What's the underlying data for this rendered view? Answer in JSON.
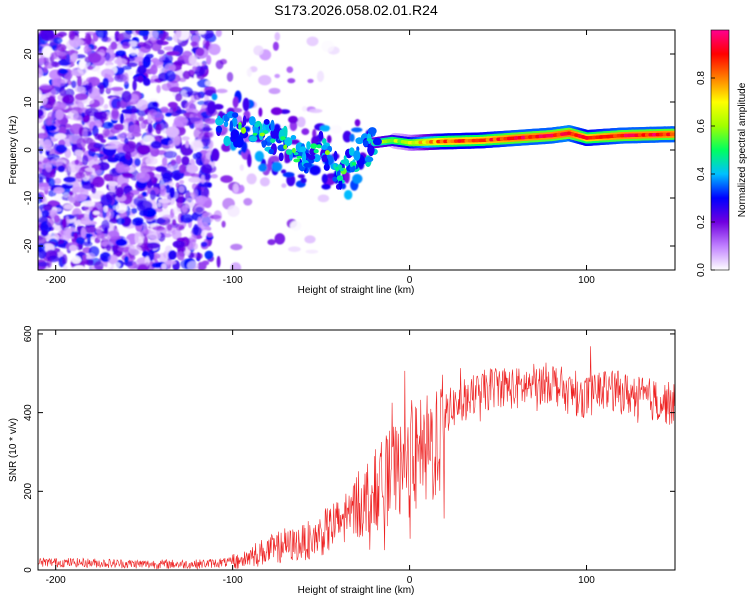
{
  "title": "S173.2026.058.02.01.R24",
  "chart_data": [
    {
      "type": "heatmap",
      "xlabel": "Height of straight line (km)",
      "ylabel": "Frequency (Hz)",
      "xlim": [
        -210,
        150
      ],
      "ylim": [
        -25,
        25
      ],
      "xticks": [
        -200,
        -100,
        0,
        100
      ],
      "yticks": [
        -20,
        -10,
        0,
        10,
        20
      ],
      "colorbar": {
        "label": "Normalized spectral amplitude",
        "range": [
          0.0,
          1.0
        ],
        "ticks": [
          "0.0",
          "0.2",
          "0.4",
          "0.6",
          "0.8"
        ],
        "colors": [
          "#ffffff",
          "#c080ff",
          "#7000e0",
          "#0000ff",
          "#00c0ff",
          "#00ff60",
          "#a0ff00",
          "#ffff00",
          "#ff8000",
          "#ff0000",
          "#ff0090"
        ]
      },
      "trace": {
        "x": [
          -110,
          -100,
          -90,
          -80,
          -70,
          -60,
          -50,
          -40,
          -30,
          -20,
          -10,
          0,
          20,
          40,
          60,
          80,
          90,
          100,
          120,
          150
        ],
        "y": [
          5,
          4.5,
          4,
          3,
          1,
          -2,
          1,
          -5,
          -1,
          1.5,
          2,
          1.5,
          1.8,
          2,
          2.5,
          3,
          3.5,
          2.5,
          3,
          3.3
        ],
        "amp": [
          0.3,
          0.4,
          0.4,
          0.3,
          0.2,
          0.25,
          0.3,
          0.25,
          0.45,
          0.55,
          0.6,
          0.65,
          0.85,
          0.85,
          0.9,
          0.9,
          0.92,
          0.85,
          0.9,
          0.9
        ]
      }
    },
    {
      "type": "line",
      "xlabel": "Height of straight line (km)",
      "ylabel": "SNR (10 * v/v)",
      "xlim": [
        -210,
        150
      ],
      "ylim": [
        0,
        610
      ],
      "xticks": [
        -200,
        -100,
        0,
        100
      ],
      "yticks": [
        0,
        200,
        400,
        600
      ],
      "color": "#ee2222",
      "series": [
        {
          "name": "SNR",
          "x": [
            -210,
            -180,
            -150,
            -120,
            -100,
            -90,
            -80,
            -70,
            -60,
            -50,
            -40,
            -30,
            -20,
            -10,
            0,
            10,
            15,
            20,
            30,
            40,
            50,
            60,
            70,
            80,
            90,
            100,
            110,
            120,
            130,
            140,
            150
          ],
          "y": [
            20,
            18,
            15,
            15,
            20,
            35,
            50,
            60,
            70,
            90,
            120,
            160,
            200,
            240,
            270,
            300,
            330,
            400,
            430,
            450,
            470,
            460,
            470,
            480,
            450,
            440,
            460,
            450,
            440,
            430,
            420
          ]
        }
      ]
    }
  ]
}
